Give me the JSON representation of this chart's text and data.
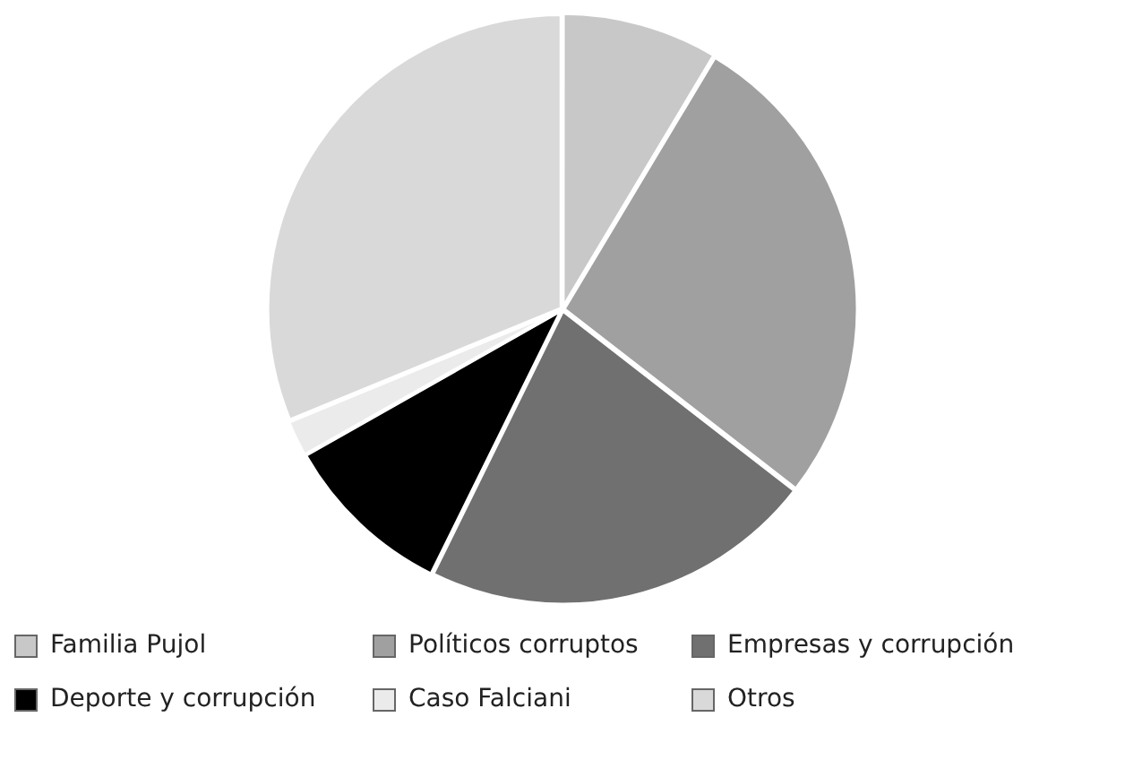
{
  "chart_data": {
    "type": "pie",
    "categories": [
      "Familia Pujol",
      "Políticos corruptos",
      "Empresas y corrupción",
      "Deporte y corrupción",
      "Caso Falciani",
      "Otros"
    ],
    "values": [
      8.6,
      26.9,
      21.8,
      9.5,
      2,
      31.2
    ],
    "colors": [
      "#c8c8c8",
      "#a0a0a0",
      "#707070",
      "#000000",
      "#ebebeb",
      "#d9d9d9"
    ],
    "legend": "bottom"
  }
}
